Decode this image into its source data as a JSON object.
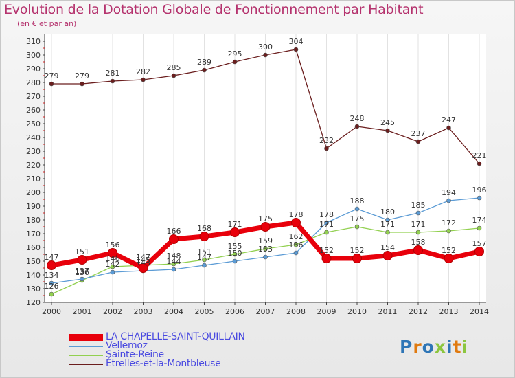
{
  "title": "Evolution de la Dotation Globale de Fonctionnement par Habitant",
  "subtitle": "(en € et par an)",
  "brand": "Proxiti",
  "chart_data": {
    "type": "line",
    "title": "Evolution de la Dotation Globale de Fonctionnement par Habitant",
    "subtitle": "(en € et par an)",
    "xlabel": "",
    "ylabel": "",
    "x": [
      2000,
      2001,
      2002,
      2003,
      2004,
      2005,
      2006,
      2007,
      2008,
      2009,
      2010,
      2011,
      2012,
      2013,
      2014
    ],
    "ylim": [
      120,
      310
    ],
    "yticks": [
      120,
      130,
      140,
      150,
      160,
      170,
      180,
      190,
      200,
      210,
      220,
      230,
      240,
      250,
      260,
      270,
      280,
      290,
      300,
      310
    ],
    "grid": "vertical",
    "legend_position": "bottom-left",
    "series": [
      {
        "name": "LA CHAPELLE-SAINT-QUILLAIN",
        "color": "#e8000b",
        "style": "thick",
        "values": [
          147,
          151,
          156,
          145,
          166,
          168,
          171,
          175,
          178,
          152,
          152,
          154,
          158,
          152,
          157
        ]
      },
      {
        "name": "Vellemoz",
        "color": "#5b9bd5",
        "style": "thin",
        "values": [
          134,
          137,
          142,
          143,
          144,
          147,
          150,
          153,
          156,
          178,
          188,
          180,
          185,
          194,
          196
        ]
      },
      {
        "name": "Sainte-Reine",
        "color": "#92d050",
        "style": "thin",
        "values": [
          126,
          136,
          146,
          147,
          148,
          151,
          155,
          159,
          162,
          171,
          175,
          171,
          171,
          172,
          174
        ]
      },
      {
        "name": "Étrelles-et-la-Montbleuse",
        "color": "#6b1e1e",
        "style": "thin",
        "values": [
          279,
          279,
          281,
          282,
          285,
          289,
          295,
          300,
          304,
          232,
          248,
          245,
          237,
          247,
          221
        ]
      }
    ]
  }
}
